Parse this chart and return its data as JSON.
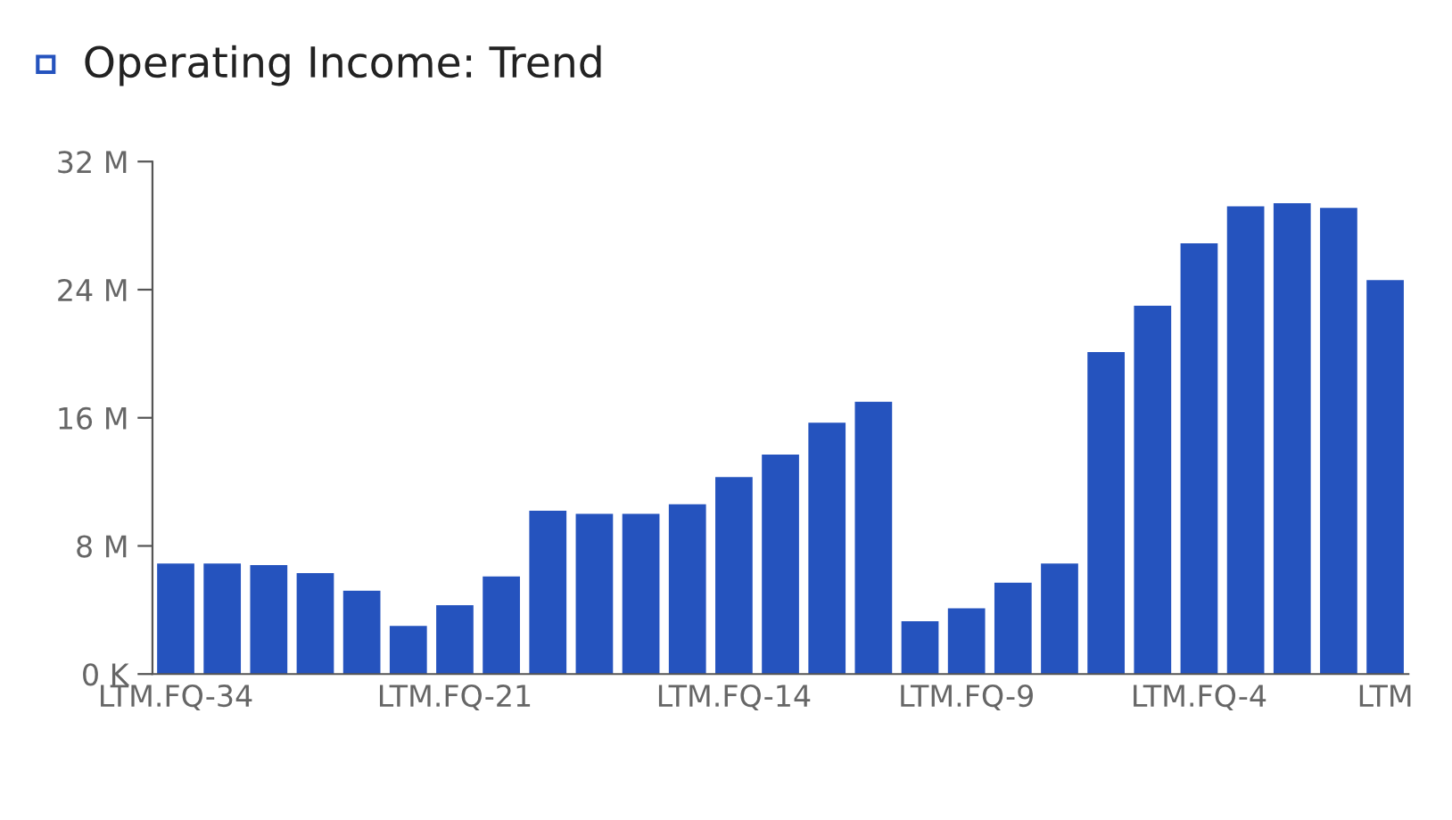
{
  "chart_data": {
    "type": "bar",
    "title": "Operating Income: Trend",
    "categories": [
      "LTM.FQ-34",
      null,
      null,
      null,
      null,
      null,
      "LTM.FQ-21",
      null,
      null,
      null,
      null,
      null,
      "LTM.FQ-14",
      null,
      null,
      null,
      null,
      "LTM.FQ-9",
      null,
      null,
      null,
      null,
      "LTM.FQ-4",
      null,
      null,
      null,
      "LTM"
    ],
    "values": [
      6.9,
      6.9,
      6.8,
      6.3,
      5.2,
      3.0,
      4.3,
      6.1,
      10.2,
      10.0,
      10.0,
      10.6,
      12.3,
      13.7,
      15.7,
      17.0,
      3.3,
      4.1,
      5.7,
      6.9,
      20.1,
      23.0,
      26.9,
      29.2,
      29.4,
      29.1,
      24.6
    ],
    "color": "#2553be",
    "ylim": [
      0,
      32
    ],
    "yticks": [
      {
        "value": 0,
        "label": "0 K"
      },
      {
        "value": 8,
        "label": "8 M"
      },
      {
        "value": 16,
        "label": "16 M"
      },
      {
        "value": 24,
        "label": "24 M"
      },
      {
        "value": 32,
        "label": "32 M"
      }
    ],
    "grid": false,
    "legend": false
  }
}
